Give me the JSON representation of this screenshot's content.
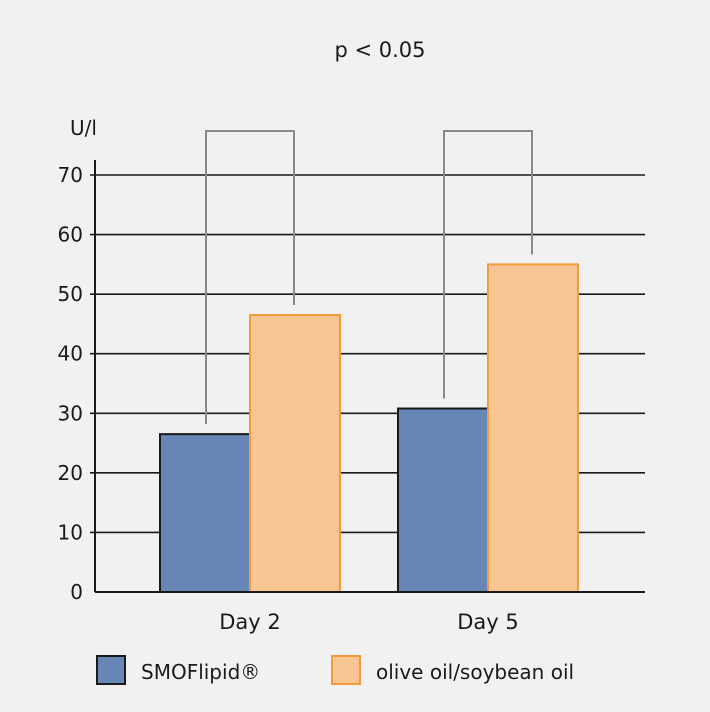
{
  "chart_data": {
    "type": "bar",
    "title": "",
    "annotation": "p < 0.05",
    "ylabel": "U/l",
    "xlabel": "",
    "ylim": [
      0,
      70
    ],
    "yticks": [
      "0",
      "10",
      "20",
      "30",
      "40",
      "50",
      "60",
      "70"
    ],
    "categories": [
      "Day 2",
      "Day 5"
    ],
    "grid": true,
    "legend_position": "bottom",
    "series": [
      {
        "name": "SMOFlipid®",
        "color": "#6787b7",
        "values": [
          26.5,
          30.8
        ]
      },
      {
        "name": "olive oil/soybean oil",
        "color": "#f6c591",
        "values": [
          46.5,
          55
        ]
      }
    ],
    "significance_brackets": [
      {
        "category": "Day 2",
        "label": "p < 0.05"
      },
      {
        "category": "Day 5",
        "label": "p < 0.05"
      }
    ]
  },
  "colors": {
    "background": "#f1f1f1",
    "grid": "#1a1a1a",
    "bracket": "#8a8a8a",
    "bar_border_smof": "#1a1a1a",
    "bar_border_olive": "#f39a3a"
  }
}
